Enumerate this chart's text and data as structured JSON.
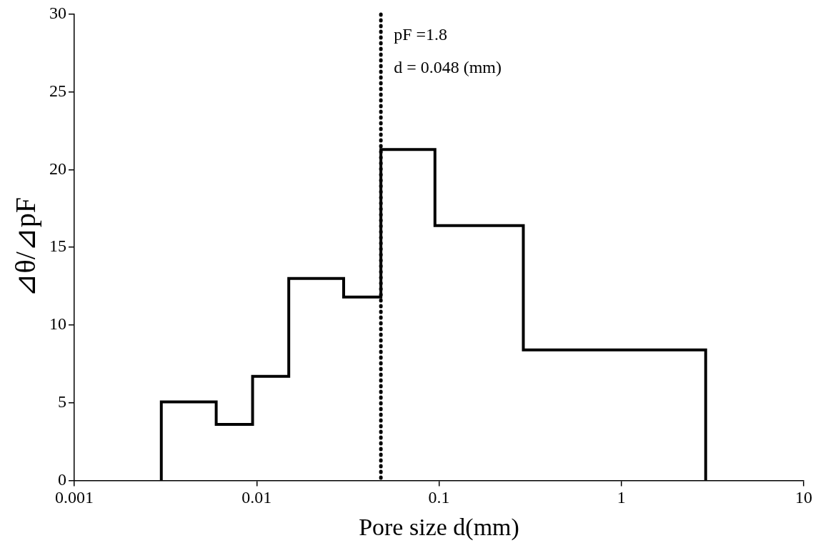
{
  "chart_data": {
    "type": "histogram",
    "xlabel": "Pore size d(mm)",
    "ylabel": "⊿θ/⊿pF",
    "bins": [
      0.003,
      0.006,
      0.0095,
      0.015,
      0.03,
      0.048,
      0.095,
      0.29,
      2.9
    ],
    "values": [
      5.05,
      3.6,
      6.7,
      13,
      11.8,
      21.3,
      16.4,
      8.4
    ],
    "color": "#000000",
    "log": "x",
    "grid": false,
    "legend": false,
    "xlim": [
      0.001,
      10
    ],
    "xticks": [
      0.001,
      0.01,
      0.1,
      1,
      10
    ],
    "ylim": [
      0,
      30
    ],
    "yticks": [
      0,
      5,
      10,
      15,
      20,
      25,
      30
    ],
    "ref_lines": [
      {
        "axis": "x",
        "value": 0.048,
        "label": "d = 0.048 (mm)",
        "color": "#000000",
        "line_style": "dotted"
      }
    ],
    "annotations": [
      "pF =1.8"
    ]
  }
}
